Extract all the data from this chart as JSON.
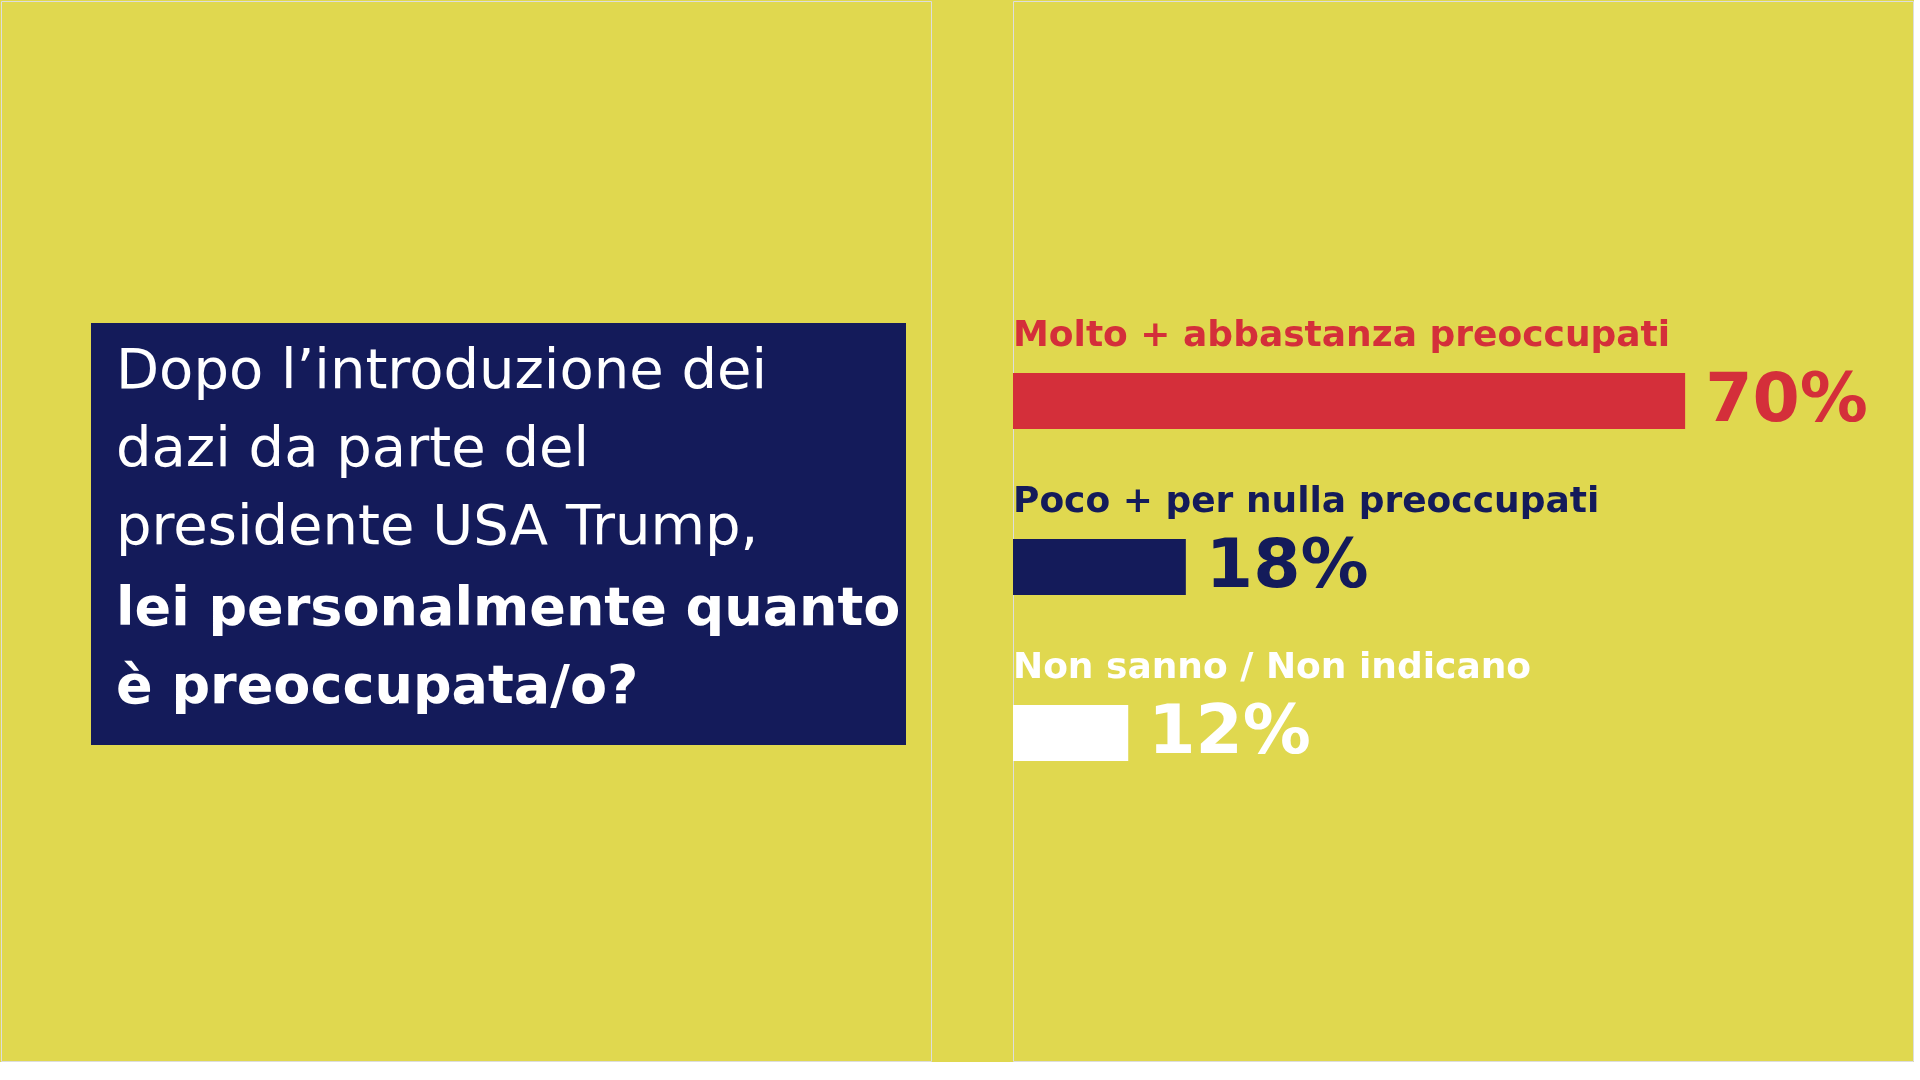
{
  "chart_data": {
    "type": "bar",
    "orientation": "horizontal",
    "title": "Dopo l’introduzione dei dazi da parte del presidente USA Trump,",
    "subtitle": "lei personalmente quanto è preoccupata/o?",
    "categories": [
      "Molto + abbastanza preoccupati",
      "Poco + per nulla preoccupati",
      "Non sanno / Non indicano"
    ],
    "values": [
      70,
      18,
      12
    ],
    "colors": [
      "#d42f3a",
      "#141b5a",
      "#ffffff"
    ],
    "value_labels": [
      "70%",
      "18%",
      "12%"
    ]
  }
}
